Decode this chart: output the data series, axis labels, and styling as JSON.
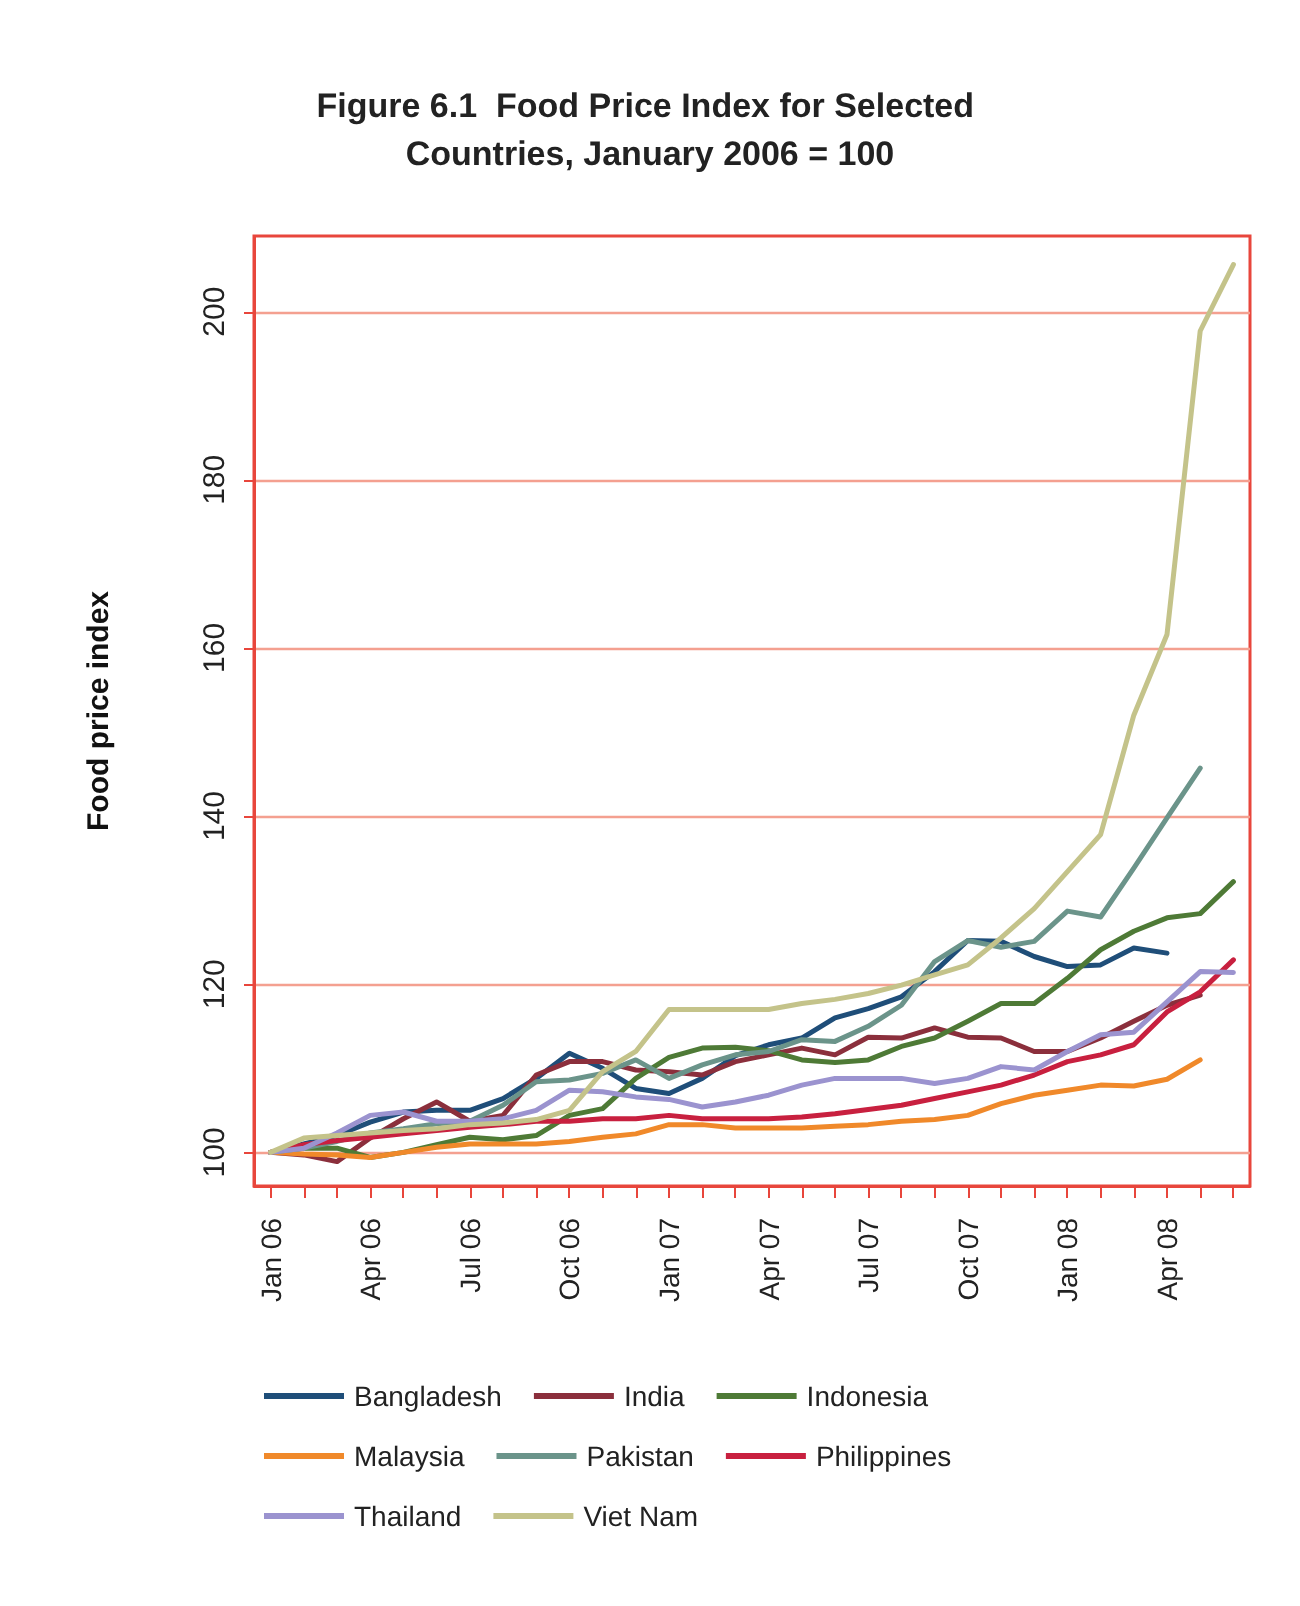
{
  "chart_data": {
    "type": "line",
    "title": "Figure 6.1  Food Price Index for Selected Countries, January 2006 = 100",
    "ylabel": "Food price index",
    "categories": [
      "Jan 06",
      null,
      null,
      "Apr 06",
      null,
      null,
      "Jul 06",
      null,
      null,
      "Oct 06",
      null,
      null,
      "Jan 07",
      null,
      null,
      "Apr 07",
      null,
      null,
      "Jul 07",
      null,
      null,
      "Oct 07",
      null,
      null,
      "Jan 08",
      null,
      null,
      "Apr 08",
      null,
      null
    ],
    "ylim": [
      96,
      209
    ],
    "yticks": [
      100,
      120,
      140,
      160,
      180,
      200
    ],
    "grid": "y",
    "legend": "bottom",
    "marker": "none",
    "line_style": "solid",
    "series": [
      {
        "name": "Bangladesh",
        "color": "#1f4e79",
        "values": [
          100,
          101,
          102,
          103.6,
          104.8,
          105,
          105,
          106.4,
          108.8,
          111.8,
          110,
          107.6,
          107,
          108.8,
          111.5,
          112.8,
          113.6,
          116,
          117.1,
          118.5,
          121.5,
          125.2,
          125.1,
          123.3,
          122.1,
          122.3,
          124.3,
          123.7,
          null,
          null
        ]
      },
      {
        "name": "India",
        "color": "#8b2f3c",
        "values": [
          100,
          99.7,
          98.9,
          101.7,
          104,
          106,
          103.7,
          104.4,
          109.2,
          110.8,
          110.8,
          109.8,
          109.6,
          109.2,
          110.8,
          111.6,
          112.4,
          111.6,
          113.7,
          113.6,
          114.8,
          113.7,
          113.6,
          112,
          112,
          113.6,
          115.6,
          117.5,
          118.7,
          null
        ]
      },
      {
        "name": "Indonesia",
        "color": "#4e7a36",
        "values": [
          100,
          100.5,
          100.5,
          99.4,
          100,
          100.9,
          101.8,
          101.5,
          102,
          104.4,
          105.2,
          108.8,
          111.3,
          112.4,
          112.5,
          112.1,
          111,
          110.7,
          111,
          112.6,
          113.6,
          115.6,
          117.7,
          117.7,
          120.7,
          124.1,
          126.3,
          127.9,
          128.4,
          132.2
        ]
      },
      {
        "name": "Malaysia",
        "color": "#f0892a",
        "values": [
          100,
          99.8,
          99.7,
          99.4,
          100,
          100.6,
          101,
          101,
          101,
          101.3,
          101.8,
          102.2,
          103.3,
          103.3,
          102.9,
          102.9,
          102.9,
          103.1,
          103.3,
          103.7,
          103.9,
          104.4,
          105.8,
          106.8,
          107.4,
          108,
          107.9,
          108.7,
          111,
          null
        ]
      },
      {
        "name": "Pakistan",
        "color": "#6b948a",
        "values": [
          100,
          100.5,
          101.3,
          102.3,
          102.8,
          103.4,
          103.7,
          105.6,
          108.4,
          108.6,
          109.4,
          111,
          108.8,
          110.4,
          111.6,
          112,
          113.4,
          113.2,
          115,
          117.5,
          122.7,
          125.2,
          124.4,
          125.1,
          128.7,
          128,
          133.8,
          139.8,
          145.7,
          null
        ]
      },
      {
        "name": "Philippines",
        "color": "#c8203f",
        "values": [
          100,
          100.9,
          101.4,
          101.8,
          102.2,
          102.6,
          103,
          103.3,
          103.7,
          103.7,
          104,
          104,
          104.4,
          104,
          104,
          104,
          104.2,
          104.6,
          105.1,
          105.6,
          106.4,
          107.2,
          108,
          109.2,
          110.8,
          111.6,
          112.8,
          116.7,
          119.1,
          122.9
        ]
      },
      {
        "name": "Thailand",
        "color": "#9b93cf",
        "values": [
          100,
          100.5,
          102.3,
          104.4,
          104.8,
          103.7,
          103.7,
          104,
          105,
          107.4,
          107.2,
          106.6,
          106.3,
          105.4,
          106,
          106.8,
          108,
          108.8,
          108.8,
          108.8,
          108.2,
          108.8,
          110.2,
          109.8,
          112,
          114,
          114.3,
          117.9,
          121.5,
          121.4
        ]
      },
      {
        "name": "Viet Nam",
        "color": "#c4c38a",
        "values": [
          100,
          101.7,
          102,
          102.3,
          102.6,
          102.8,
          103.3,
          103.5,
          103.9,
          105,
          109.6,
          112,
          117,
          117,
          117,
          117,
          117.7,
          118.2,
          118.9,
          119.9,
          121.1,
          122.3,
          125.5,
          129,
          133.4,
          137.8,
          152,
          161.6,
          197.7,
          205.6
        ]
      }
    ]
  }
}
